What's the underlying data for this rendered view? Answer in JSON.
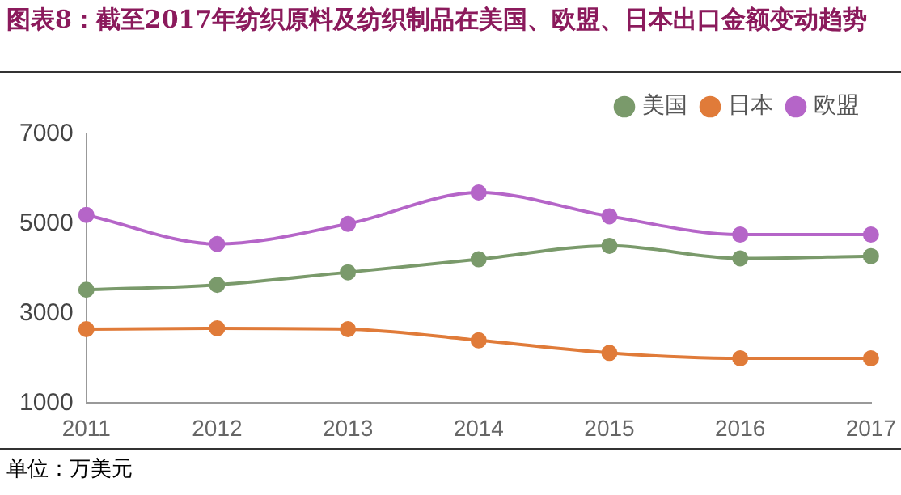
{
  "chart_data": {
    "type": "line",
    "title": "图表8：截至2017年纺织原料及纺织制品在美国、欧盟、日本出口金额变动趋势",
    "categories": [
      "2011",
      "2012",
      "2013",
      "2014",
      "2015",
      "2016",
      "2017"
    ],
    "series": [
      {
        "name": "美国",
        "color": "#7a9a6b",
        "values": [
          3530,
          3640,
          3920,
          4210,
          4510,
          4230,
          4280
        ]
      },
      {
        "name": "日本",
        "color": "#e07b39",
        "values": [
          2650,
          2670,
          2650,
          2400,
          2120,
          2000,
          2000
        ]
      },
      {
        "name": "欧盟",
        "color": "#b565c8",
        "values": [
          5200,
          4550,
          5000,
          5700,
          5170,
          4760,
          4760
        ]
      }
    ],
    "ylim": [
      1000,
      7000
    ],
    "yticks": [
      1000,
      3000,
      5000,
      7000
    ],
    "grid": false,
    "legend": "top right",
    "marker": "circle",
    "line_style": "solid",
    "annotations": [
      "单位：万美元"
    ]
  }
}
